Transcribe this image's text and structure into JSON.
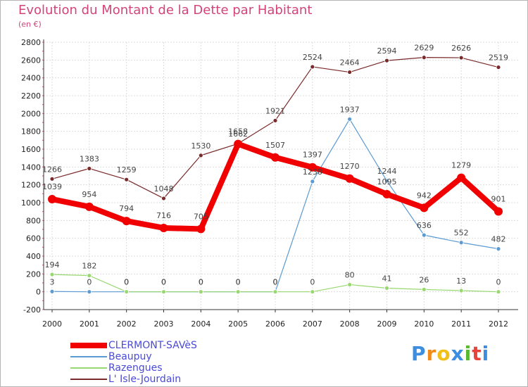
{
  "header": {
    "title": "Evolution du Montant de la Dette par Habitant",
    "subtitle": "(en €)"
  },
  "logo": {
    "letters": [
      "P",
      "r",
      "o",
      "x",
      "i",
      "t",
      "i"
    ],
    "colors": [
      "#3d8de0",
      "#f08a1a",
      "#f0c018",
      "#3d8de0",
      "#58b830",
      "#e8443a",
      "#3d8de0"
    ]
  },
  "chart_data": {
    "type": "line",
    "title": "Evolution du Montant de la Dette par Habitant",
    "subtitle": "(en €)",
    "xlabel": "",
    "ylabel": "",
    "x": [
      "2000",
      "2001",
      "2002",
      "2003",
      "2004",
      "2005",
      "2006",
      "2007",
      "2008",
      "2009",
      "2010",
      "2011",
      "2012"
    ],
    "ylim": [
      -200,
      2800
    ],
    "yticks": [
      "-200",
      "0",
      "200",
      "400",
      "600",
      "800",
      "1000",
      "1200",
      "1400",
      "1600",
      "1800",
      "2000",
      "2200",
      "2400",
      "2600",
      "2800"
    ],
    "grid": true,
    "legend_position": "bottom-left",
    "series": [
      {
        "name": "CLERMONT-SAVèS",
        "color": "#f00000",
        "width": 8,
        "marker": 6,
        "values": [
          1039,
          954,
          794,
          716,
          705,
          1658,
          1507,
          1397,
          1270,
          1095,
          942,
          1279,
          901
        ],
        "labels": [
          "1039",
          "954",
          "794",
          "716",
          "705",
          "1658",
          "1507",
          "1397",
          "1270",
          "1095",
          "942",
          "1279",
          "901"
        ]
      },
      {
        "name": "Beaupuy",
        "color": "#5c9ad2",
        "width": 1.2,
        "marker": 3,
        "values": [
          3,
          0,
          0,
          0,
          0,
          0,
          0,
          1238,
          1937,
          1244,
          636,
          552,
          482
        ],
        "labels": [
          "3",
          "0",
          "0",
          "0",
          "0",
          "0",
          "0",
          "1238",
          "1937",
          "1244",
          "636",
          "552",
          "482"
        ]
      },
      {
        "name": "Razengues",
        "color": "#98d870",
        "width": 1.2,
        "marker": 3,
        "values": [
          194,
          182,
          0,
          0,
          0,
          0,
          0,
          0,
          80,
          41,
          26,
          13,
          0
        ],
        "labels": [
          "194",
          "182",
          "0",
          "0",
          "0",
          "0",
          "0",
          "0",
          "80",
          "41",
          "26",
          "13",
          "0"
        ]
      },
      {
        "name": "L' Isle-Jourdain",
        "color": "#7a2a2a",
        "width": 1.2,
        "marker": 3,
        "values": [
          1266,
          1383,
          1259,
          1048,
          1530,
          1662,
          1921,
          2524,
          2464,
          2594,
          2629,
          2626,
          2519
        ],
        "labels": [
          "1266",
          "1383",
          "1259",
          "1048",
          "1530",
          "1662",
          "1921",
          "2524",
          "2464",
          "2594",
          "2629",
          "2626",
          "2519"
        ]
      }
    ]
  }
}
